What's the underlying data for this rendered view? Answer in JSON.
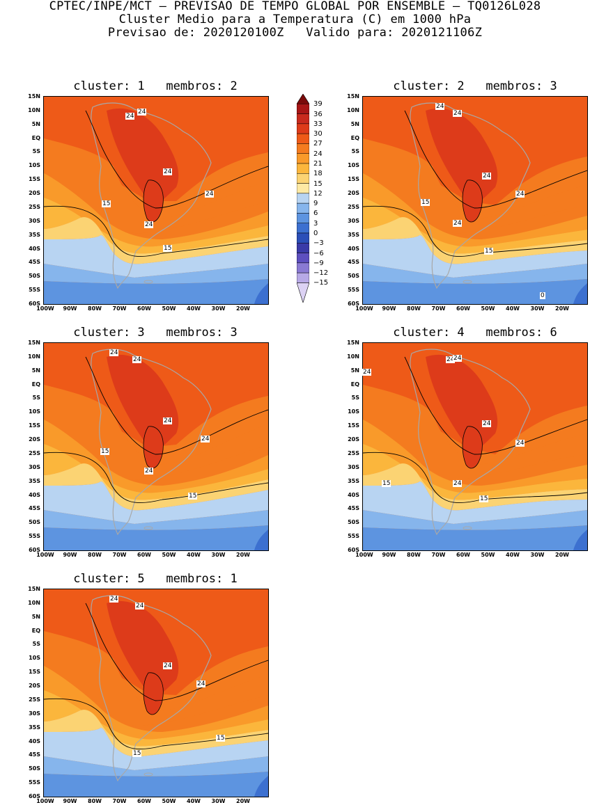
{
  "header": {
    "line1": "CPTEC/INPE/MCT — PREVISAO DE TEMPO GLOBAL POR ENSEMBLE — TQ0126L028",
    "line2": "Cluster Medio para a Temperatura (C) em 1000 hPa",
    "line3": "Previsao de: 2020120100Z   Valido para: 2020121106Z"
  },
  "panels": [
    {
      "title": "cluster: 1   membros: 2",
      "labels": [
        "24",
        "24",
        "24",
        "24",
        "15",
        "24",
        "15"
      ]
    },
    {
      "title": "cluster: 2   membros: 3",
      "labels": [
        "24",
        "24",
        "24",
        "24",
        "15",
        "24",
        "15",
        "0"
      ]
    },
    {
      "title": "cluster: 3   membros: 3",
      "labels": [
        "24",
        "24",
        "24",
        "24",
        "15",
        "24",
        "15"
      ]
    },
    {
      "title": "cluster: 4   membros: 6",
      "labels": [
        "24",
        "24",
        "24",
        "24",
        "24",
        "15",
        "24",
        "15"
      ]
    },
    {
      "title": "cluster: 5   membros: 1",
      "labels": [
        "24",
        "24",
        "24",
        "24",
        "15",
        "15"
      ]
    }
  ],
  "axes": {
    "y_ticks": [
      "15N",
      "10N",
      "5N",
      "EQ",
      "5S",
      "10S",
      "15S",
      "20S",
      "25S",
      "30S",
      "35S",
      "40S",
      "45S",
      "50S",
      "55S",
      "60S"
    ],
    "x_ticks": [
      "100W",
      "90W",
      "80W",
      "70W",
      "60W",
      "50W",
      "40W",
      "30W",
      "20W"
    ]
  },
  "colorbar": {
    "levels": [
      "39",
      "36",
      "33",
      "30",
      "27",
      "24",
      "21",
      "18",
      "15",
      "12",
      "9",
      "6",
      "3",
      "0",
      "−3",
      "−6",
      "−9",
      "−12",
      "−15"
    ],
    "colors": [
      "#7a0a0a",
      "#a81616",
      "#c82a1e",
      "#dd3b1a",
      "#ee5a18",
      "#f47b1f",
      "#f99a2a",
      "#fbb63c",
      "#fbd373",
      "#fde9a4",
      "#b8d4f2",
      "#86b5ec",
      "#5d94e0",
      "#3c70d0",
      "#2b4fb8",
      "#3a3aa8",
      "#5d4fbf",
      "#8a7ad3",
      "#b7a9e6",
      "#dcd2f4"
    ]
  }
}
